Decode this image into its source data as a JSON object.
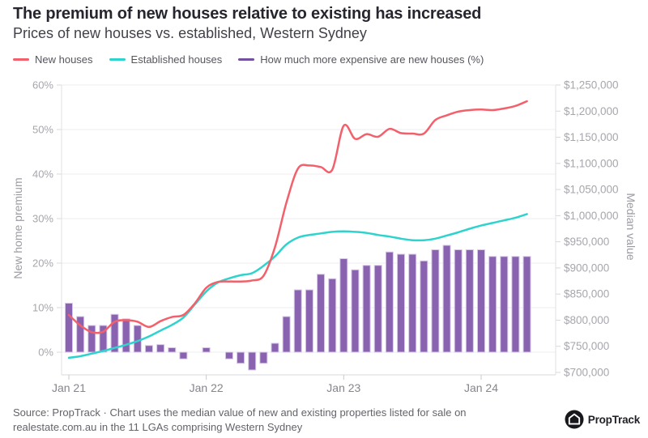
{
  "header": {
    "title": "The premium of new houses relative to existing has increased",
    "subtitle": "Prices of new houses vs. established, Western Sydney"
  },
  "legend": [
    {
      "label": "New houses",
      "color": "#f2606b"
    },
    {
      "label": "Established houses",
      "color": "#2ed3ce"
    },
    {
      "label": "How much more expensive are new houses (%)",
      "color": "#7450a0"
    }
  ],
  "chart_data": {
    "type": "bar+line",
    "x": [
      "Jan 21",
      "Feb 21",
      "Mar 21",
      "Apr 21",
      "May 21",
      "Jun 21",
      "Jul 21",
      "Aug 21",
      "Sep 21",
      "Oct 21",
      "Nov 21",
      "Dec 21",
      "Jan 22",
      "Feb 22",
      "Mar 22",
      "Apr 22",
      "May 22",
      "Jun 22",
      "Jul 22",
      "Aug 22",
      "Sep 22",
      "Oct 22",
      "Nov 22",
      "Dec 22",
      "Jan 23",
      "Feb 23",
      "Mar 23",
      "Apr 23",
      "May 23",
      "Jun 23",
      "Jul 23",
      "Aug 23",
      "Sep 23",
      "Oct 23",
      "Nov 23",
      "Dec 23",
      "Jan 24",
      "Feb 24",
      "Mar 24",
      "Apr 24",
      "May 24"
    ],
    "series": [
      {
        "name": "How much more expensive are new houses (%)",
        "kind": "bar",
        "axis": "left",
        "unit": "%",
        "color": "#8a63b0",
        "edge_color": "#d7c8e8",
        "values": [
          11,
          8,
          6,
          6,
          8.5,
          7.5,
          6,
          1.5,
          1.7,
          1,
          -1.5,
          0,
          1,
          0,
          -1.5,
          -2.5,
          -4,
          -2.5,
          2,
          8,
          14,
          14,
          17.5,
          16.5,
          21,
          18.5,
          19.5,
          19.5,
          22.5,
          22,
          22,
          20.5,
          23,
          24,
          23,
          23,
          23,
          21.5,
          21.5,
          21.5,
          21.5
        ]
      },
      {
        "name": "New houses",
        "kind": "line",
        "axis": "right",
        "unit": "$",
        "color": "#f2606b",
        "values": [
          810000,
          790000,
          777000,
          778000,
          797000,
          800000,
          797000,
          787000,
          798000,
          806000,
          810000,
          832000,
          862000,
          873000,
          874000,
          874000,
          876000,
          885000,
          940000,
          1025000,
          1090000,
          1096000,
          1093000,
          1088000,
          1172000,
          1147000,
          1156000,
          1151000,
          1166000,
          1158000,
          1157000,
          1157000,
          1183000,
          1192000,
          1199000,
          1202000,
          1203000,
          1202000,
          1205000,
          1210000,
          1219000
        ]
      },
      {
        "name": "Established houses",
        "kind": "line",
        "axis": "right",
        "unit": "$",
        "color": "#2ed3ce",
        "values": [
          728000,
          731000,
          736000,
          741000,
          747000,
          753000,
          760000,
          769000,
          780000,
          791000,
          805000,
          830000,
          855000,
          872000,
          880000,
          886000,
          890000,
          904000,
          922000,
          945000,
          958000,
          963000,
          966000,
          969000,
          970000,
          969000,
          967000,
          963000,
          960000,
          956000,
          953000,
          953000,
          956000,
          962000,
          968000,
          975000,
          981000,
          986000,
          991000,
          996000,
          1003000
        ]
      }
    ],
    "left_axis": {
      "title": "New home premium",
      "min": 0,
      "max": 60,
      "step": 10,
      "tick_labels": [
        "0%",
        "10%",
        "20%",
        "30%",
        "40%",
        "50%",
        "60%"
      ]
    },
    "right_axis": {
      "title": "Median value",
      "min": 700000,
      "max": 1250000,
      "step": 50000,
      "tick_labels": [
        "$700,000",
        "$750,000",
        "$800,000",
        "$850,000",
        "$900,000",
        "$950,000",
        "$1,000,000",
        "$1,050,000",
        "$1,100,000",
        "$1,150,000",
        "$1,200,000",
        "$1,250,000"
      ]
    },
    "x_ticks": [
      {
        "label": "Jan 21",
        "index": 0
      },
      {
        "label": "Jan 22",
        "index": 12
      },
      {
        "label": "Jan 23",
        "index": 24
      },
      {
        "label": "Jan 24",
        "index": 36
      }
    ],
    "grid": true,
    "legend_position": "top"
  },
  "footer": {
    "source_text": "Source: PropTrack · Chart uses the median value of new and existing properties listed for sale on realestate.com.au in the 11 LGAs comprising Western Sydney",
    "logo_text": "PropTrack"
  }
}
